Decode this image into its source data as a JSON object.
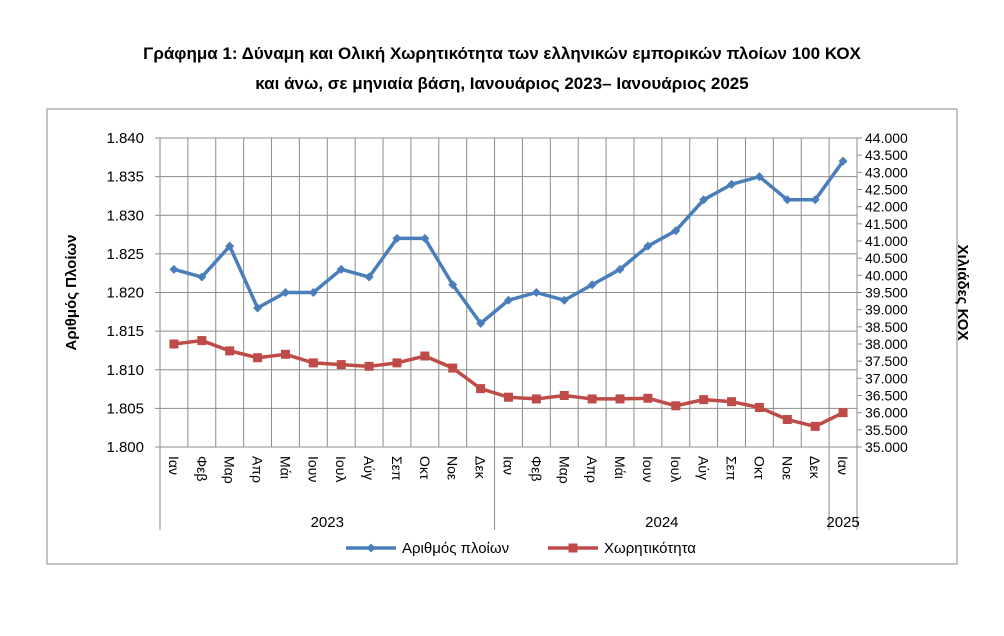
{
  "title_line1": "Γράφημα 1: Δύναμη και Ολική Χωρητικότητα των ελληνικών εμπορικών πλοίων 100 ΚΟΧ",
  "title_line2": "και άνω, σε μηνιαία βάση, Ιανουάριος 2023– Ιανουάριος 2025",
  "chart_data": {
    "type": "line",
    "categories": [
      "Ιαν",
      "Φεβ",
      "Μαρ",
      "Απρ",
      "Μάι",
      "Ιουν",
      "Ιουλ",
      "Αύγ",
      "Σεπ",
      "Οκτ",
      "Νοε",
      "Δεκ",
      "Ιαν",
      "Φεβ",
      "Μαρ",
      "Απρ",
      "Μάι",
      "Ιουν",
      "Ιουλ",
      "Αύγ",
      "Σεπ",
      "Οκτ",
      "Νοε",
      "Δεκ",
      "Ιαν"
    ],
    "year_groups": [
      {
        "label": "2023",
        "start": 0,
        "end": 11
      },
      {
        "label": "2024",
        "start": 12,
        "end": 23
      },
      {
        "label": "2025",
        "start": 24,
        "end": 24
      }
    ],
    "series": [
      {
        "name": "Αριθμός πλοίων",
        "axis": "left",
        "color": "#4a7ebb",
        "values": [
          1823,
          1822,
          1826,
          1818,
          1820,
          1820,
          1823,
          1822,
          1827,
          1827,
          1821,
          1816,
          1819,
          1820,
          1819,
          1821,
          1823,
          1826,
          1828,
          1832,
          1834,
          1835,
          1832,
          1832,
          1837
        ]
      },
      {
        "name": "Χωρητικότητα",
        "axis": "right",
        "color": "#be4b48",
        "values": [
          38000,
          38100,
          37800,
          37600,
          37700,
          37450,
          37400,
          37350,
          37450,
          37650,
          37300,
          36700,
          36450,
          36400,
          36500,
          36400,
          36400,
          36420,
          36200,
          36380,
          36320,
          36150,
          35800,
          35600,
          36000
        ]
      }
    ],
    "y_left": {
      "label": "Αριθμός Πλοίων",
      "min": 1800,
      "max": 1840,
      "step": 5,
      "ticks": [
        "1.800",
        "1.805",
        "1.810",
        "1.815",
        "1.820",
        "1.825",
        "1.830",
        "1.835",
        "1.840"
      ]
    },
    "y_right": {
      "label": "Χιλιάδες ΚΟΧ",
      "min": 35000,
      "max": 44000,
      "step": 500,
      "ticks": [
        "35.000",
        "35.500",
        "36.000",
        "36.500",
        "37.000",
        "37.500",
        "38.000",
        "38.500",
        "39.000",
        "39.500",
        "40.000",
        "40.500",
        "41.000",
        "41.500",
        "42.000",
        "42.500",
        "43.000",
        "43.500",
        "44.000"
      ]
    },
    "grid": true,
    "legend_position": "bottom"
  }
}
